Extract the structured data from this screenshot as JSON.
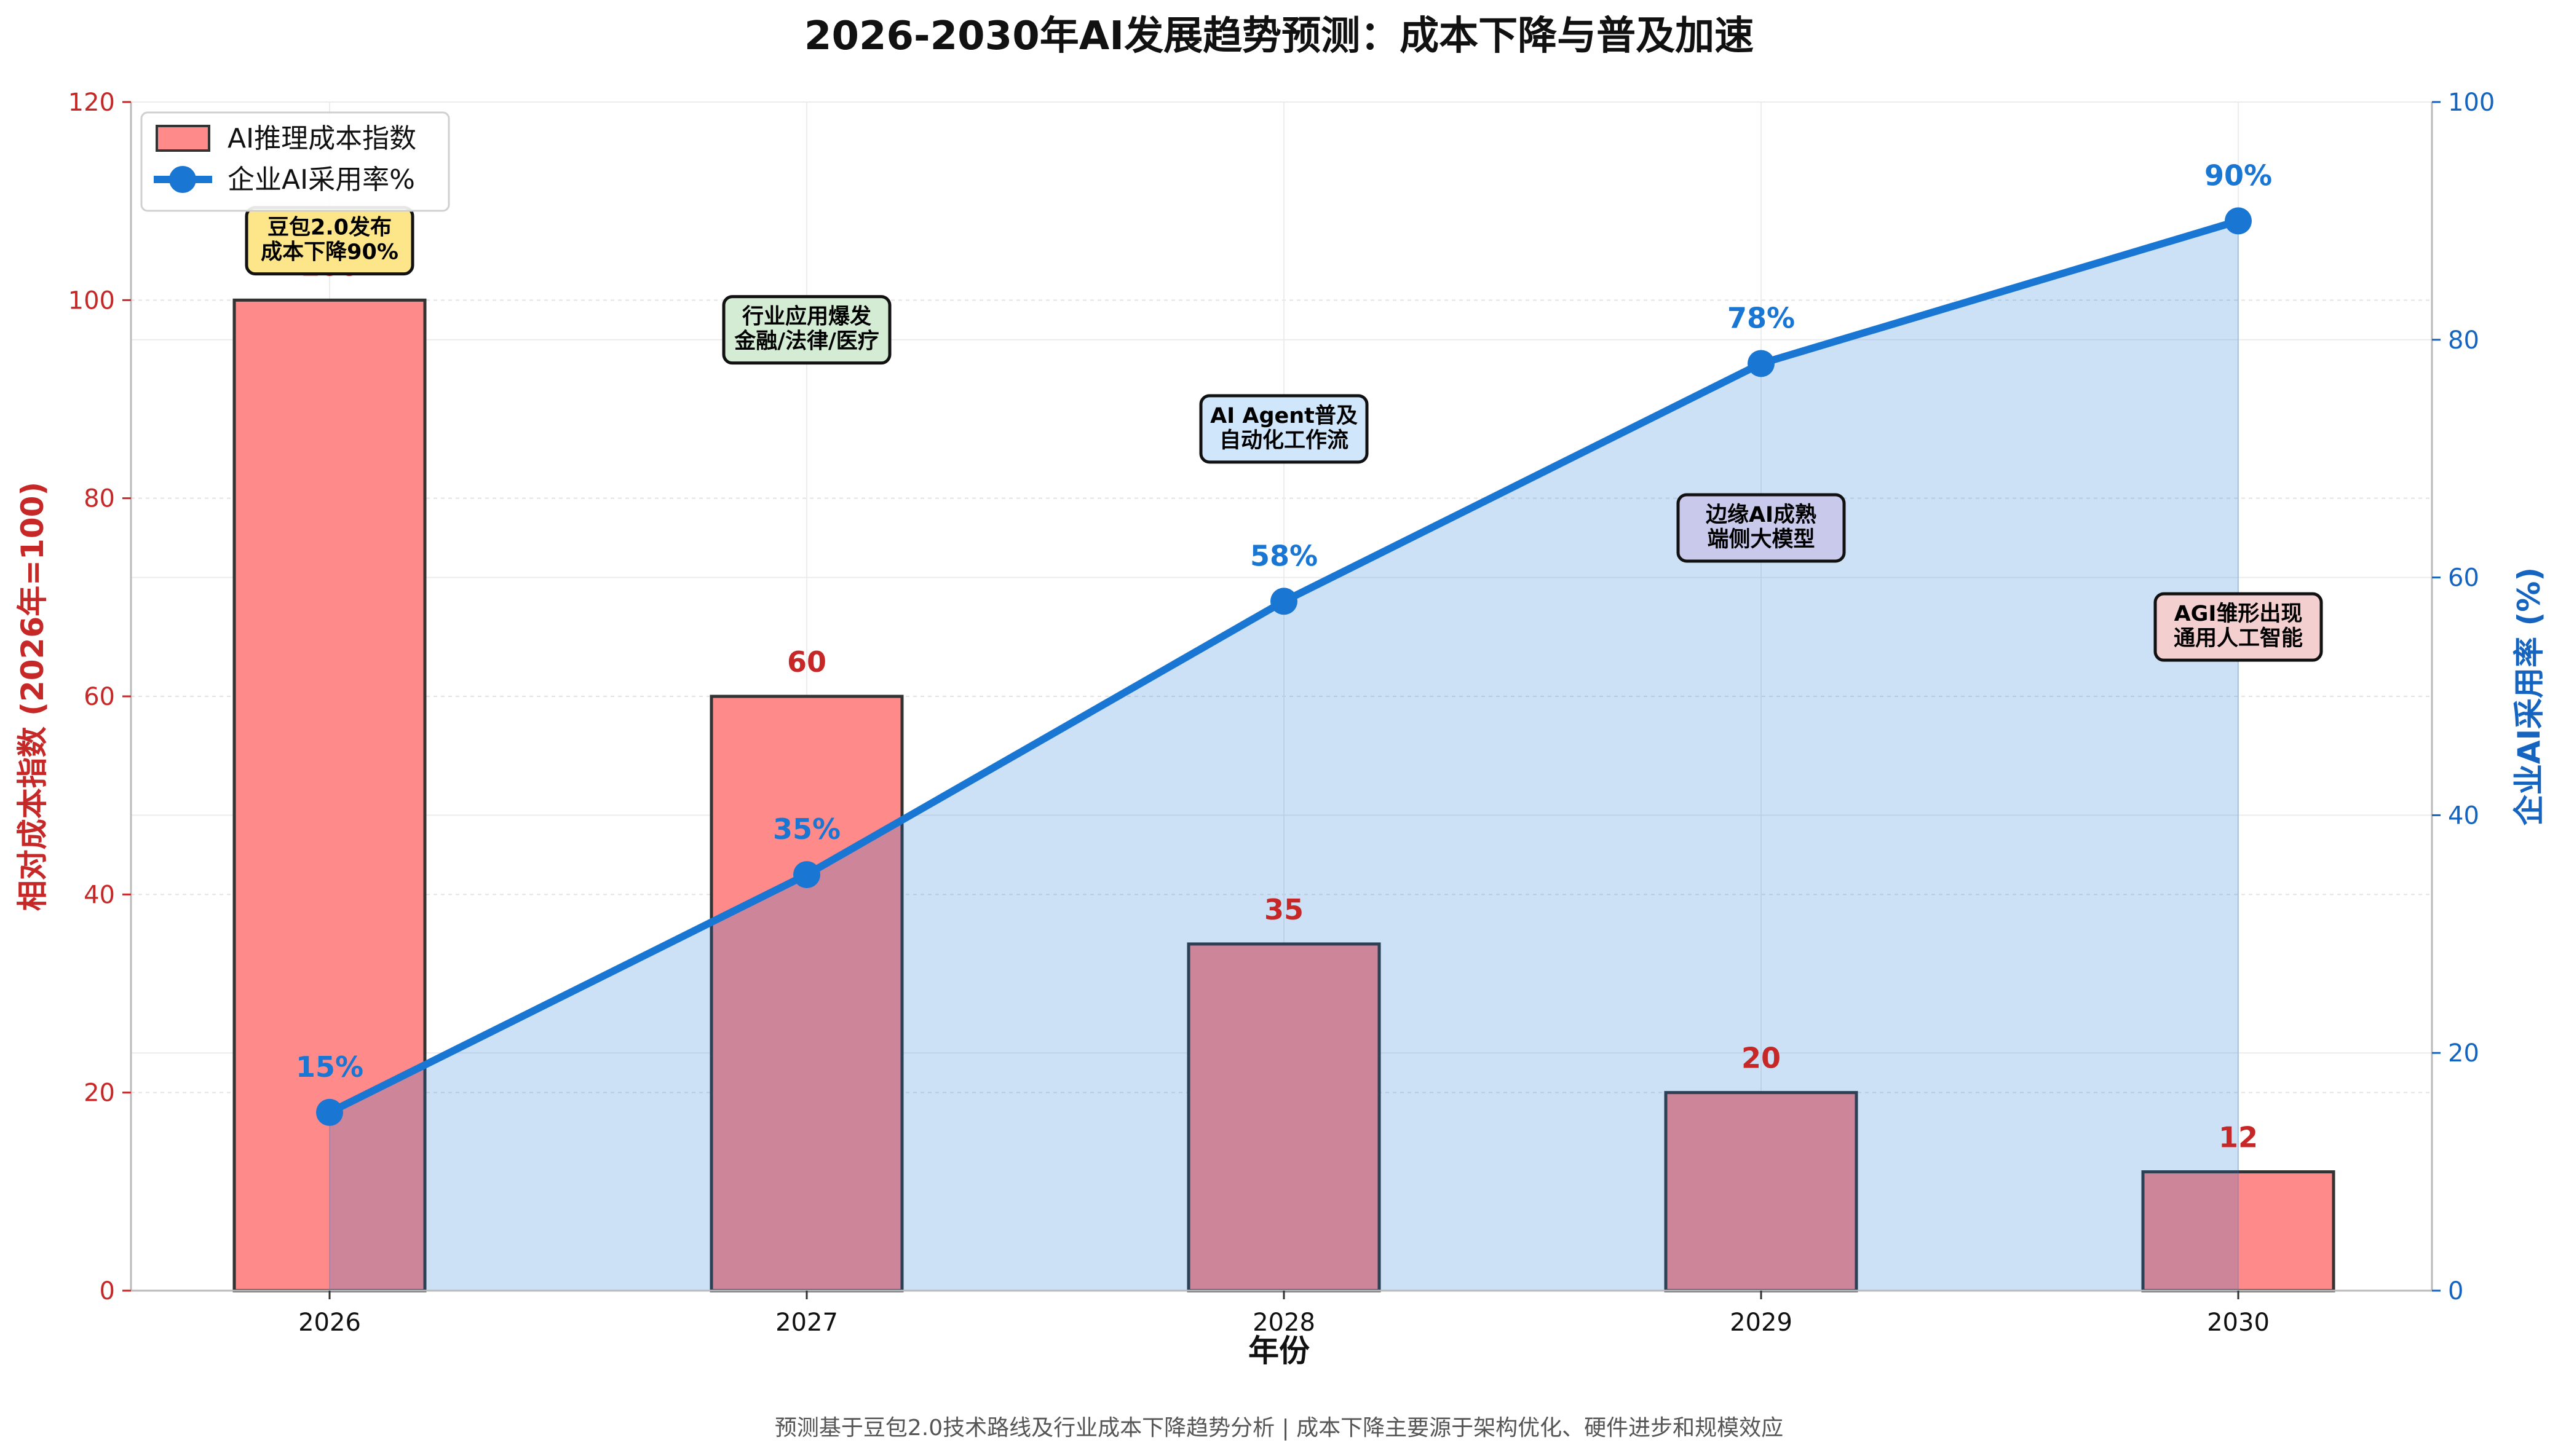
{
  "chart_data": {
    "type": "bar+line",
    "title": "2026-2030年AI发展趋势预测：成本下降与普及加速",
    "xlabel": "年份",
    "categories": [
      "2026",
      "2027",
      "2028",
      "2029",
      "2030"
    ],
    "series": [
      {
        "name": "AI推理成本指数",
        "type": "bar",
        "axis": "left",
        "values": [
          100,
          60,
          35,
          20,
          12
        ],
        "value_labels": [
          "100",
          "60",
          "35",
          "20",
          "12"
        ],
        "color": "#ff8a8a"
      },
      {
        "name": "企业AI采用率%",
        "type": "line",
        "axis": "right",
        "values": [
          15,
          35,
          58,
          78,
          90
        ],
        "value_labels": [
          "15%",
          "35%",
          "58%",
          "78%",
          "90%"
        ],
        "color": "#1976d2"
      }
    ],
    "left_axis": {
      "label": "相对成本指数 (2026年=100)",
      "ylim": [
        0,
        120
      ],
      "ticks": [
        0,
        20,
        40,
        60,
        80,
        100,
        120
      ],
      "tick_labels": [
        "0",
        "20",
        "40",
        "60",
        "80",
        "100",
        "120"
      ],
      "color": "#c62828"
    },
    "right_axis": {
      "label": "企业AI采用率 (%)",
      "ylim": [
        0,
        100
      ],
      "ticks": [
        0,
        20,
        40,
        60,
        80,
        100
      ],
      "tick_labels": [
        "0",
        "20",
        "40",
        "60",
        "80",
        "100"
      ],
      "color": "#1565c0"
    },
    "annotations": [
      {
        "category": "2026",
        "lines": [
          "豆包2.0发布",
          "成本下降90%"
        ],
        "bg": "#fde68a",
        "anchor_value": 106,
        "axis": "left"
      },
      {
        "category": "2027",
        "lines": [
          "行业应用爆发",
          "金融/法律/医疗"
        ],
        "bg": "#d3ecd3",
        "anchor_value": 97,
        "axis": "left"
      },
      {
        "category": "2028",
        "lines": [
          "AI Agent普及",
          "自动化工作流"
        ],
        "bg": "#cfe6fb",
        "anchor_value": 87,
        "axis": "left"
      },
      {
        "category": "2029",
        "lines": [
          "边缘AI成熟",
          "端侧大模型"
        ],
        "bg": "#c9c9ec",
        "anchor_value": 77,
        "axis": "left"
      },
      {
        "category": "2030",
        "lines": [
          "AGI雏形出现",
          "通用人工智能"
        ],
        "bg": "#f4cfcf",
        "anchor_value": 67,
        "axis": "left"
      }
    ],
    "legend": {
      "position": "top-left"
    },
    "grid": true,
    "footnote": "预测基于豆包2.0技术路线及行业成本下降趋势分析 | 成本下降主要源于架构优化、硬件进步和规模效应"
  }
}
